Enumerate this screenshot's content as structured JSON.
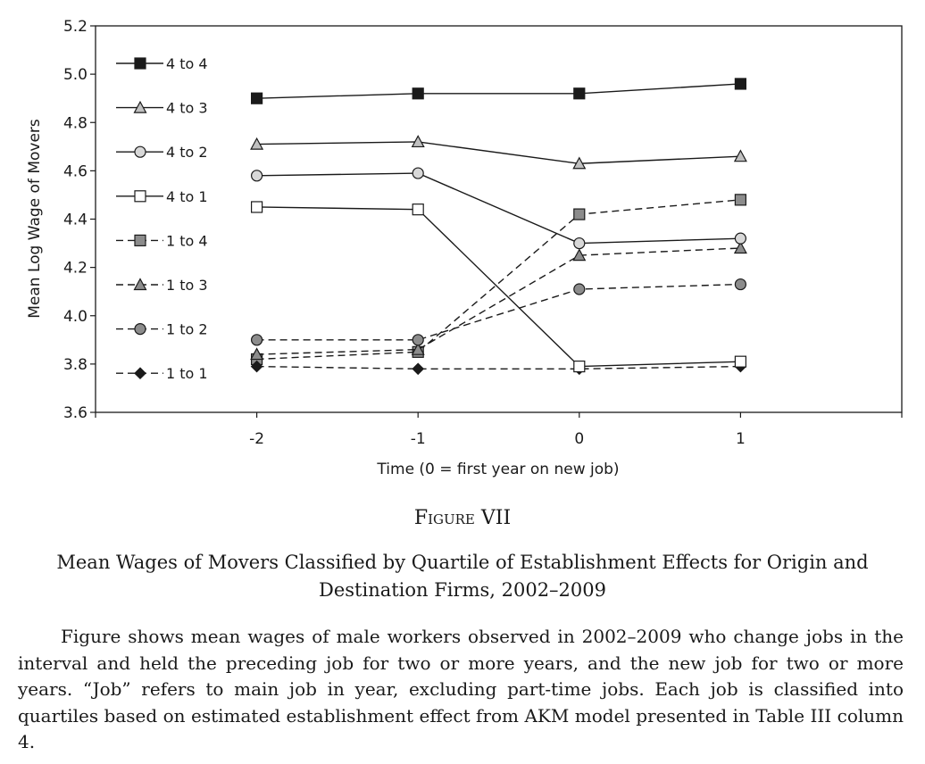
{
  "chart_data": {
    "type": "line",
    "xlabel": "Time (0 = first year on new job)",
    "ylabel": "Mean Log Wage of Movers",
    "x": [
      -2,
      -1,
      0,
      1
    ],
    "xlim": [
      -3,
      2
    ],
    "ylim": [
      3.6,
      5.2
    ],
    "yticks": [
      "3.6",
      "3.8",
      "4.0",
      "4.2",
      "4.4",
      "4.6",
      "4.8",
      "5.0",
      "5.2"
    ],
    "xticks": [
      "-2",
      "-1",
      "0",
      "1"
    ],
    "grid": false,
    "legend_position": "top-left",
    "series": [
      {
        "name": "4 to 4",
        "marker": "square",
        "fill": "#1a1a1a",
        "dash": "solid",
        "values": [
          4.9,
          4.92,
          4.92,
          4.96
        ]
      },
      {
        "name": "4 to 3",
        "marker": "triangle",
        "fill": "#c0c0c0",
        "dash": "solid",
        "values": [
          4.71,
          4.72,
          4.63,
          4.66
        ]
      },
      {
        "name": "4 to 2",
        "marker": "circle",
        "fill": "#d8d8d8",
        "dash": "solid",
        "values": [
          4.58,
          4.59,
          4.3,
          4.32
        ]
      },
      {
        "name": "4 to 1",
        "marker": "square",
        "fill": "#ffffff",
        "dash": "solid",
        "values": [
          4.45,
          4.44,
          3.79,
          3.81
        ]
      },
      {
        "name": "1 to 4",
        "marker": "square",
        "fill": "#8c8c8c",
        "dash": "dashed",
        "values": [
          3.82,
          3.85,
          4.42,
          4.48
        ]
      },
      {
        "name": "1 to 3",
        "marker": "triangle",
        "fill": "#8c8c8c",
        "dash": "dashed",
        "values": [
          3.84,
          3.86,
          4.25,
          4.28
        ]
      },
      {
        "name": "1 to 2",
        "marker": "circle",
        "fill": "#8c8c8c",
        "dash": "dashed",
        "values": [
          3.9,
          3.9,
          4.11,
          4.13
        ]
      },
      {
        "name": "1 to 1",
        "marker": "diamond",
        "fill": "#1a1a1a",
        "dash": "dashed",
        "values": [
          3.79,
          3.78,
          3.78,
          3.79
        ]
      }
    ]
  },
  "figure": {
    "label": "Figure VII",
    "title": "Mean Wages of Movers Classified by Quartile of Establishment Effects for Origin and Destination Firms, 2002–2009",
    "note": "Figure shows mean wages of male workers observed in 2002–2009 who change jobs in the interval and held the preceding job for two or more years, and the new job for two or more years. “Job” refers to main job in year, excluding part-time jobs. Each job is classified into quartiles based on estimated establishment effect from AKM model presented in Table III column 4."
  }
}
